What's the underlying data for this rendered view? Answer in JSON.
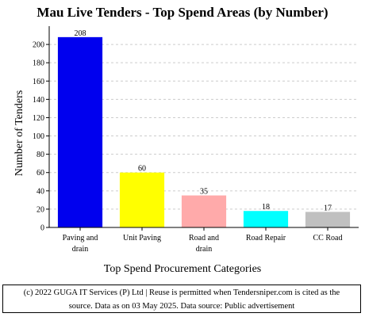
{
  "chart_data": {
    "type": "bar",
    "title": "Mau Live Tenders - Top Spend Areas (by Number)",
    "xlabel": "Top Spend Procurement Categories",
    "ylabel": "Number of Tenders",
    "ylim": [
      0,
      220
    ],
    "yticks": [
      0,
      20,
      40,
      60,
      80,
      100,
      120,
      140,
      160,
      180,
      200
    ],
    "grid": true,
    "categories": [
      [
        "Paving and",
        "drain"
      ],
      [
        "Unit Paving"
      ],
      [
        "Road and",
        "drain"
      ],
      [
        "Road Repair"
      ],
      [
        "CC Road"
      ]
    ],
    "values": [
      208,
      60,
      35,
      18,
      17
    ],
    "colors": [
      "#0000ee",
      "#ffff00",
      "#ffaaaa",
      "#00ffff",
      "#c0c0c0"
    ]
  },
  "footer": {
    "line1": "(c) 2022 GUGA IT Services (P) Ltd | Reuse is permitted when Tendersniper.com is cited as the",
    "line2": "source. Data as on 03 May 2025. Data source: Public advertisement"
  }
}
